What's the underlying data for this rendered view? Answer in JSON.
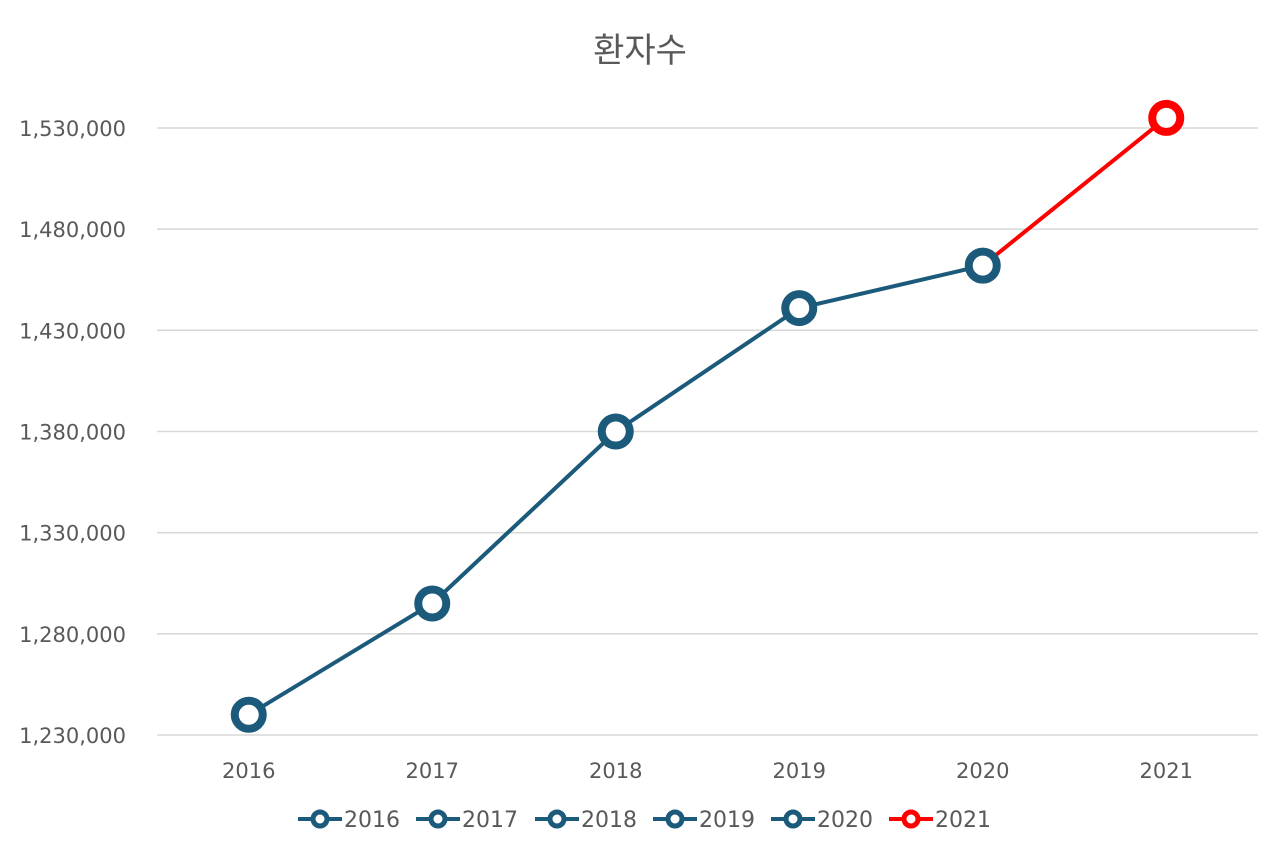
{
  "chart_data": {
    "type": "line",
    "title": "환자수",
    "xlabel": "",
    "ylabel": "",
    "categories": [
      "2016",
      "2017",
      "2018",
      "2019",
      "2020",
      "2021"
    ],
    "values": [
      1240000,
      1295000,
      1380000,
      1441000,
      1462000,
      1535000
    ],
    "ylim": [
      1230000,
      1530000
    ],
    "y_ticks": [
      "1,230,000",
      "1,280,000",
      "1,330,000",
      "1,380,000",
      "1,430,000",
      "1,480,000",
      "1,530,000"
    ],
    "grid": true,
    "legend_position": "bottom",
    "legend": [
      "2016",
      "2017",
      "2018",
      "2019",
      "2020",
      "2021"
    ],
    "colors": {
      "main": "#1b5a7a",
      "highlight": "#ff0000",
      "text": "#595959",
      "grid": "#d9d9d9"
    },
    "highlight_category": "2021"
  }
}
